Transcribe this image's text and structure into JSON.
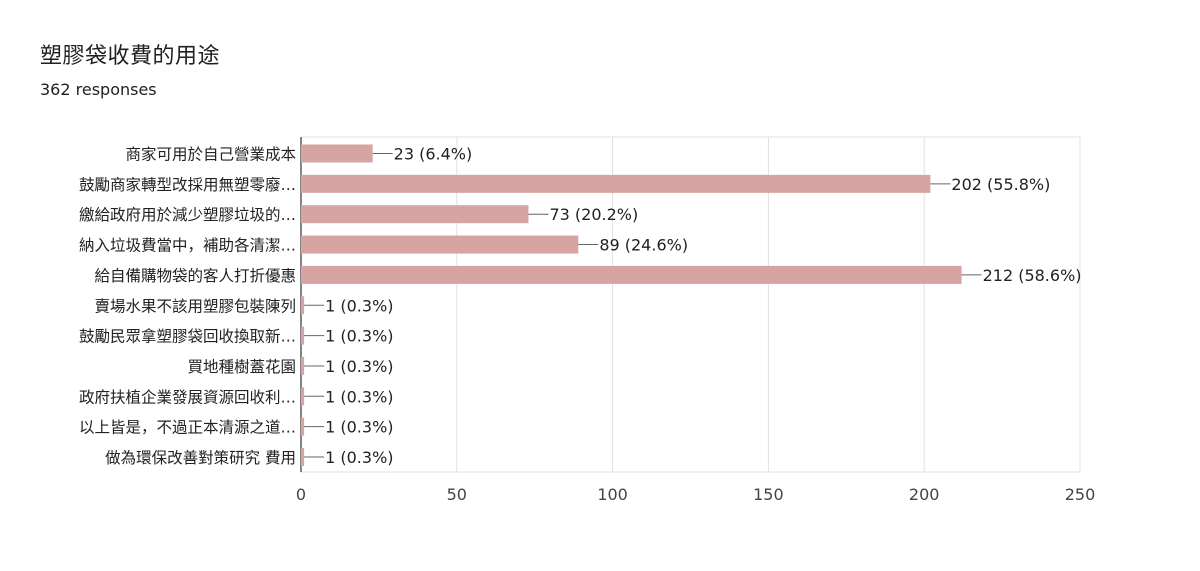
{
  "title": "塑膠袋收費的用途",
  "subtitle": "362 responses",
  "chart_data": {
    "type": "bar",
    "orientation": "horizontal",
    "categories": [
      "商家可用於自己營業成本",
      "鼓勵商家轉型改採用無塑零廢…",
      "繳給政府用於減少塑膠垃圾的…",
      "納入垃圾費當中，補助各清潔…",
      "給自備購物袋的客人打折優惠",
      "賣場水果不該用塑膠包裝陳列",
      "鼓勵民眾拿塑膠袋回收換取新…",
      "買地種樹蓋花園",
      "政府扶植企業發展資源回收利…",
      "以上皆是，不過正本清源之道…",
      "做為環保改善對策研究 費用"
    ],
    "values": [
      23,
      202,
      73,
      89,
      212,
      1,
      1,
      1,
      1,
      1,
      1
    ],
    "data_labels": [
      "23 (6.4%)",
      "202 (55.8%)",
      "73 (20.2%)",
      "89 (24.6%)",
      "212 (58.6%)",
      "1 (0.3%)",
      "1 (0.3%)",
      "1 (0.3%)",
      "1 (0.3%)",
      "1 (0.3%)",
      "1 (0.3%)"
    ],
    "xlim": [
      0,
      250
    ],
    "xticks": [
      0,
      50,
      100,
      150,
      200,
      250
    ],
    "grid": true,
    "bar_color": "#d6a5a3"
  }
}
